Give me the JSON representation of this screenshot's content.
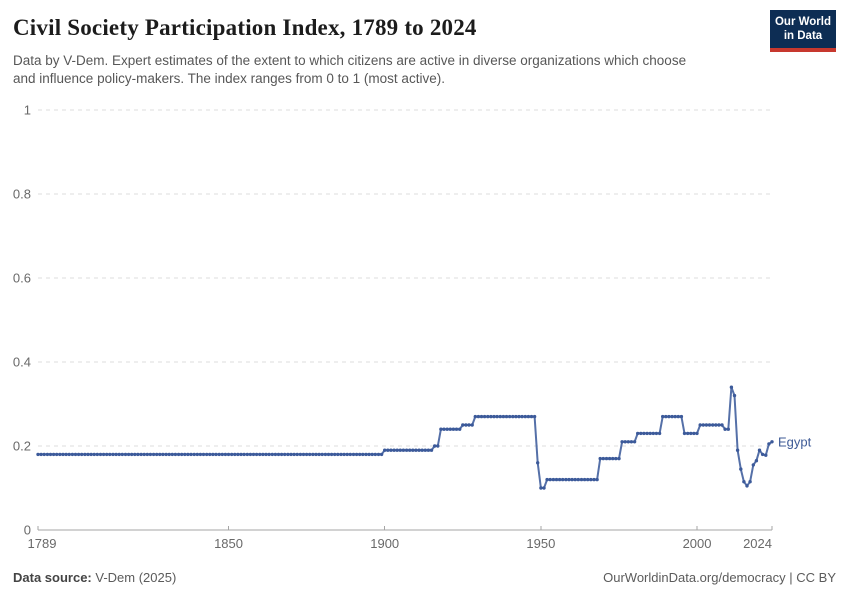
{
  "header": {
    "title": "Civil Society Participation Index, 1789 to 2024",
    "subtitle": "Data by V-Dem. Expert estimates of the extent to which citizens are active in diverse organizations which choose and influence policy-makers. The index ranges from 0 to 1 (most active).",
    "logo": {
      "line1": "Our World",
      "line2": "in Data",
      "bg_color": "#0d2d54",
      "bar_color": "#c7382e",
      "text_color": "#ffffff"
    }
  },
  "footer": {
    "source_label": "Data source:",
    "source_value": " V-Dem (2025)",
    "right_text": "OurWorldinData.org/democracy | CC BY"
  },
  "chart_data": {
    "type": "line",
    "title": "Civil Society Participation Index, 1789 to 2024",
    "entity": "Egypt",
    "xlabel": "",
    "ylabel": "",
    "xlim": [
      1789,
      2024
    ],
    "ylim": [
      0,
      1
    ],
    "x_ticks": [
      1789,
      1850,
      1900,
      1950,
      2000,
      2024
    ],
    "y_ticks": [
      0,
      0.2,
      0.4,
      0.6,
      0.8,
      1
    ],
    "grid": "horizontal-dashed",
    "legend_position": "end-of-line-label",
    "line_color": "#5570a8",
    "marker_color": "#3c5a9a",
    "label_color": "#3d5a96",
    "series": [
      {
        "name": "Egypt",
        "steps": [
          {
            "from": 1789,
            "to": 1899,
            "value": 0.18
          },
          {
            "from": 1900,
            "to": 1915,
            "value": 0.19
          },
          {
            "from": 1916,
            "to": 1917,
            "value": 0.2
          },
          {
            "from": 1918,
            "to": 1924,
            "value": 0.24
          },
          {
            "from": 1925,
            "to": 1928,
            "value": 0.25
          },
          {
            "from": 1929,
            "to": 1948,
            "value": 0.27
          },
          {
            "from": 1949,
            "to": 1949,
            "value": 0.16
          },
          {
            "from": 1950,
            "to": 1951,
            "value": 0.1
          },
          {
            "from": 1952,
            "to": 1968,
            "value": 0.12
          },
          {
            "from": 1969,
            "to": 1975,
            "value": 0.17
          },
          {
            "from": 1976,
            "to": 1980,
            "value": 0.21
          },
          {
            "from": 1981,
            "to": 1988,
            "value": 0.23
          },
          {
            "from": 1989,
            "to": 1995,
            "value": 0.27
          },
          {
            "from": 1996,
            "to": 2000,
            "value": 0.23
          },
          {
            "from": 2001,
            "to": 2008,
            "value": 0.25
          },
          {
            "from": 2009,
            "to": 2010,
            "value": 0.24
          }
        ],
        "points": [
          [
            2011,
            0.34
          ],
          [
            2012,
            0.32
          ],
          [
            2013,
            0.19
          ],
          [
            2014,
            0.145
          ],
          [
            2015,
            0.115
          ],
          [
            2016,
            0.105
          ],
          [
            2017,
            0.115
          ],
          [
            2018,
            0.155
          ],
          [
            2019,
            0.165
          ],
          [
            2020,
            0.19
          ],
          [
            2021,
            0.18
          ],
          [
            2022,
            0.178
          ],
          [
            2023,
            0.205
          ],
          [
            2024,
            0.21
          ]
        ]
      }
    ]
  }
}
